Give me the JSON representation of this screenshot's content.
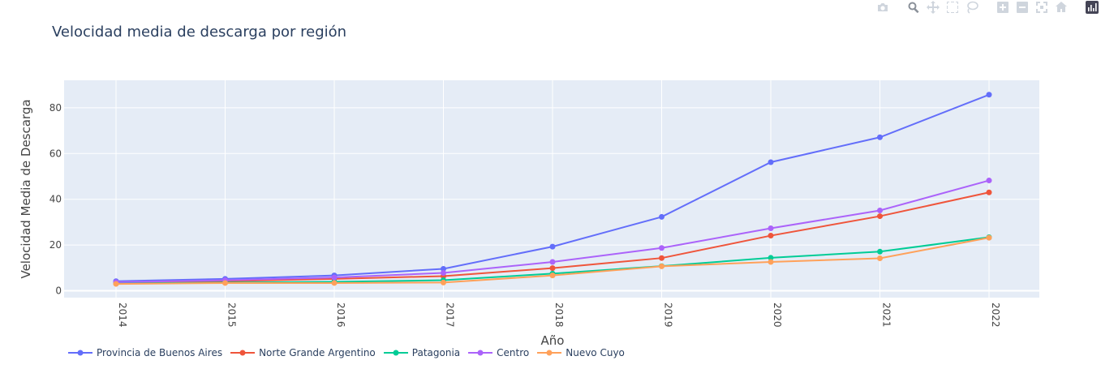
{
  "chart_data": {
    "type": "line",
    "title": "Velocidad media de descarga por región",
    "xlabel": "Año",
    "ylabel": "Velocidad Media de Descarga",
    "x": [
      "2014",
      "2015",
      "2016",
      "2017",
      "2018",
      "2019",
      "2020",
      "2021",
      "2022"
    ],
    "ylim": [
      -3,
      92
    ],
    "yticks": [
      0,
      20,
      40,
      60,
      80
    ],
    "grid": true,
    "legend_position": "bottom-left",
    "plot_bgcolor": "#e5ecf6",
    "series": [
      {
        "name": "Provincia de Buenos Aires",
        "color": "#636efa",
        "values": [
          4.2,
          5.2,
          6.7,
          9.6,
          19.3,
          32.3,
          56.2,
          67.1,
          85.7
        ]
      },
      {
        "name": "Norte Grande Argentino",
        "color": "#ef553b",
        "values": [
          3.4,
          4.2,
          5.2,
          6.4,
          9.9,
          14.3,
          24.1,
          32.6,
          43.0
        ]
      },
      {
        "name": "Patagonia",
        "color": "#00cc96",
        "values": [
          3.2,
          3.6,
          3.9,
          4.6,
          7.5,
          10.8,
          14.4,
          17.1,
          23.4
        ]
      },
      {
        "name": "Centro",
        "color": "#ab63fa",
        "values": [
          3.8,
          4.6,
          5.8,
          7.8,
          12.6,
          18.7,
          27.3,
          35.1,
          48.2
        ]
      },
      {
        "name": "Nuevo Cuyo",
        "color": "#ffa15a",
        "values": [
          3.0,
          3.4,
          3.4,
          3.6,
          6.7,
          10.7,
          12.6,
          14.2,
          23.2
        ]
      }
    ]
  },
  "modebar": {
    "icons": [
      "camera-icon",
      "zoom-icon",
      "pan-icon",
      "box-select-icon",
      "lasso-select-icon",
      "zoom-in-icon",
      "zoom-out-icon",
      "autoscale-icon",
      "reset-axes-icon",
      "plotly-logo-icon"
    ]
  }
}
